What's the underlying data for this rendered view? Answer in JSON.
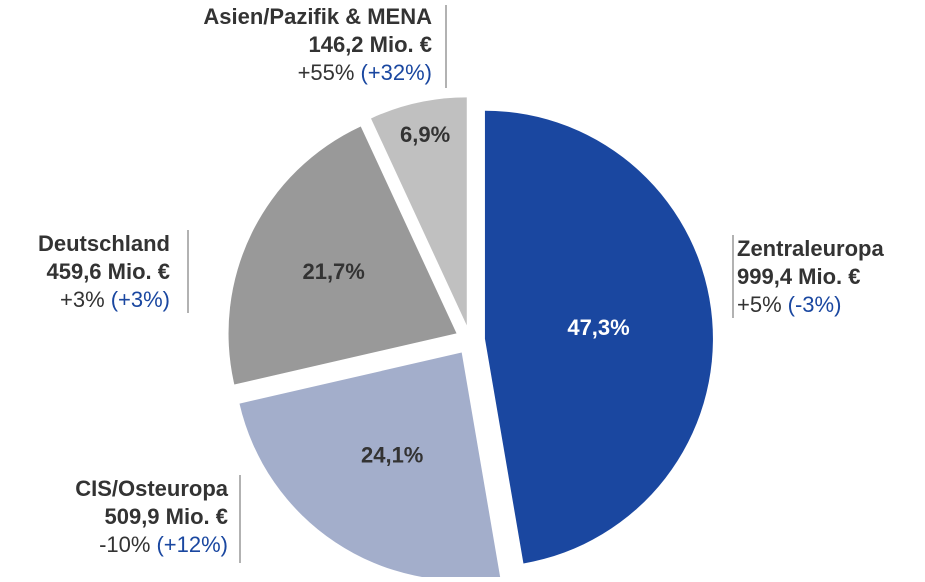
{
  "chart_data": {
    "type": "pie",
    "categories": [
      "Zentraleuropa",
      "CIS/Osteuropa",
      "Deutschland",
      "Asien/Pazifik & MENA"
    ],
    "values": [
      47.3,
      24.1,
      21.7,
      6.9
    ],
    "value_labels": [
      "47,3%",
      "24,1%",
      "21,7%",
      "6,9%"
    ],
    "colors": [
      "#1a47a0",
      "#a3aecb",
      "#999999",
      "#c0c0c0"
    ],
    "amount_labels": [
      "999,4 Mio. €",
      "509,9 Mio. €",
      "459,6 Mio. €",
      "146,2 Mio. €"
    ],
    "change_labels": [
      "+5%",
      "-10%",
      "+3%",
      "+55%"
    ],
    "change_adjusted_labels": [
      "(-3%)",
      "(+12%)",
      "(+3%)",
      "(+32%)"
    ]
  }
}
